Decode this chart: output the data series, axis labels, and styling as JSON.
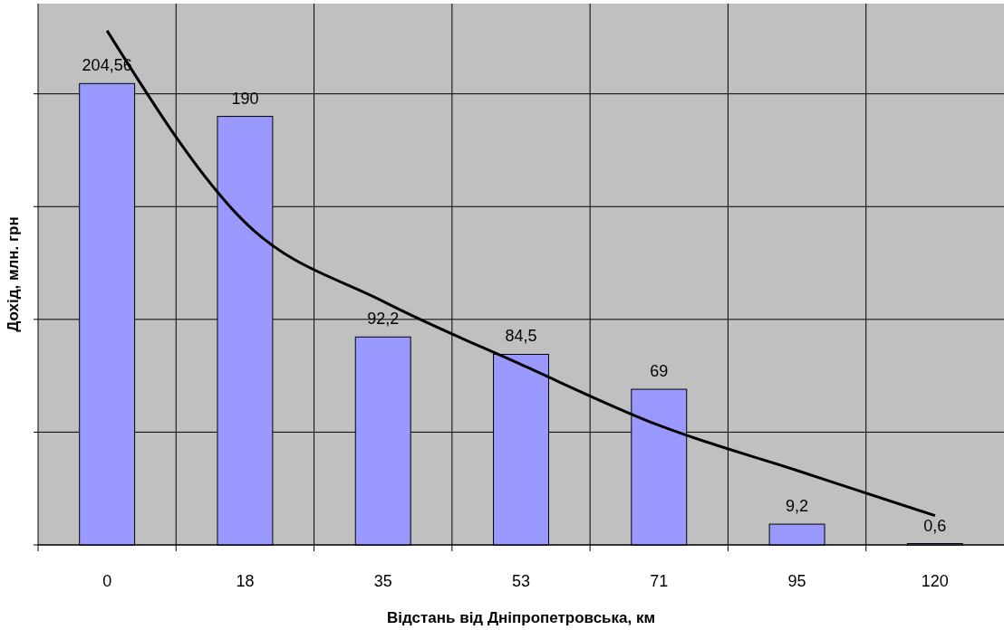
{
  "chart_data": {
    "type": "bar",
    "xlabel": "Відстань від Дніпропетровська, км",
    "ylabel": "Дохід, млн. грн",
    "categories": [
      "0",
      "18",
      "35",
      "53",
      "71",
      "95",
      "120"
    ],
    "series": [
      {
        "color": "#9999ff",
        "values": [
          204.56,
          190,
          92.2,
          84.5,
          69,
          9.2,
          0.6
        ],
        "value_labels": [
          "204,56",
          "190",
          "92,2",
          "84,5",
          "69",
          "9,2",
          "0,6"
        ]
      },
      {
        "type": "line",
        "color": "#000000",
        "values": [
          228,
          143,
          108,
          80,
          53,
          33,
          13
        ]
      }
    ],
    "ylim": [
      0,
      240
    ],
    "yticks": [
      {
        "value": 0,
        "label": null
      },
      {
        "value": 50,
        "label": null
      },
      {
        "value": 100,
        "label": null
      },
      {
        "value": 150,
        "label": null
      },
      {
        "value": 200,
        "label": null
      }
    ],
    "grid": true
  }
}
